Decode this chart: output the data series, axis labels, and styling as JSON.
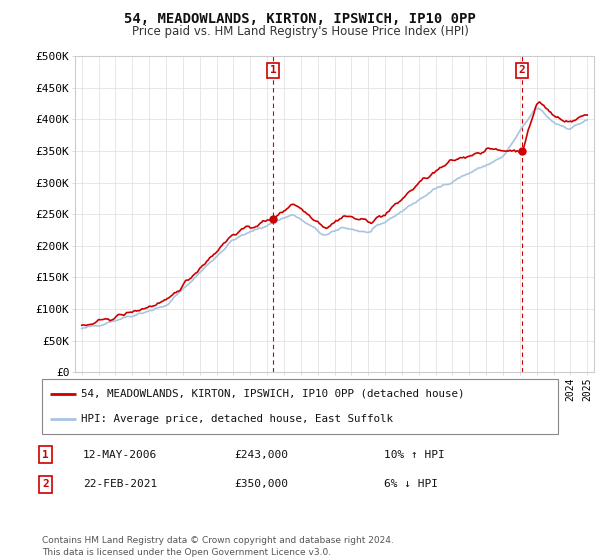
{
  "title": "54, MEADOWLANDS, KIRTON, IPSWICH, IP10 0PP",
  "subtitle": "Price paid vs. HM Land Registry's House Price Index (HPI)",
  "ylabel_ticks": [
    "£0",
    "£50K",
    "£100K",
    "£150K",
    "£200K",
    "£250K",
    "£300K",
    "£350K",
    "£400K",
    "£450K",
    "£500K"
  ],
  "ytick_vals": [
    0,
    50000,
    100000,
    150000,
    200000,
    250000,
    300000,
    350000,
    400000,
    450000,
    500000
  ],
  "ylim": [
    0,
    500000
  ],
  "legend_line1": "54, MEADOWLANDS, KIRTON, IPSWICH, IP10 0PP (detached house)",
  "legend_line2": "HPI: Average price, detached house, East Suffolk",
  "annotation1_label": "1",
  "annotation1_date": "12-MAY-2006",
  "annotation1_price": "£243,000",
  "annotation1_hpi": "10% ↑ HPI",
  "annotation2_label": "2",
  "annotation2_date": "22-FEB-2021",
  "annotation2_price": "£350,000",
  "annotation2_hpi": "6% ↓ HPI",
  "footer": "Contains HM Land Registry data © Crown copyright and database right 2024.\nThis data is licensed under the Open Government Licence v3.0.",
  "hpi_color": "#aac4e0",
  "price_color": "#cc0000",
  "vline_color": "#cc0000",
  "grid_color": "#dddddd",
  "background_color": "#ffffff",
  "sale1_x": 2006.36,
  "sale1_y": 243000,
  "sale2_x": 2021.13,
  "sale2_y": 350000,
  "xlim_left": 1994.6,
  "xlim_right": 2025.4
}
